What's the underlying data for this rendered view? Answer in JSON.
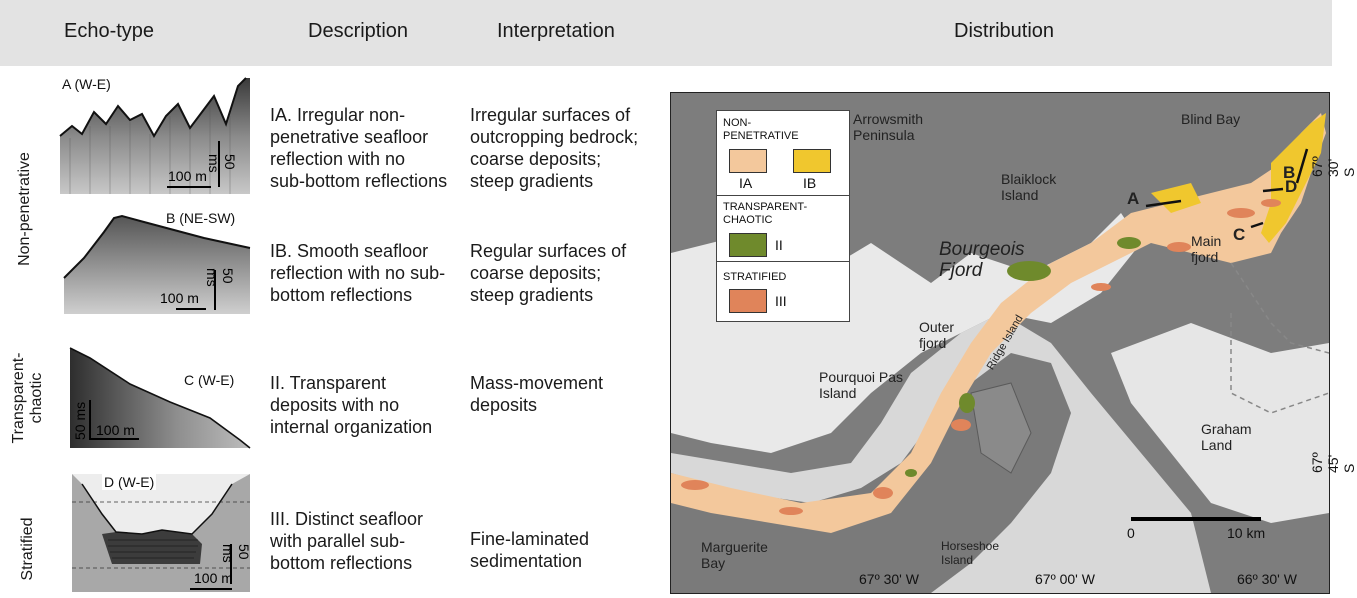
{
  "header": {
    "echo_type": "Echo-type",
    "description": "Description",
    "interpretation": "Interpretation",
    "distribution": "Distribution"
  },
  "row_labels": {
    "non_penetrative": "Non-penetrative",
    "transparent_line1": "Transparent-",
    "transparent_line2": "chaotic",
    "stratified": "Stratified"
  },
  "profiles": {
    "a": {
      "tag": "A (W-E)",
      "horizontal_scale": "100 m",
      "vertical_scale": "50 ms"
    },
    "b": {
      "tag": "B (NE-SW)",
      "horizontal_scale": "100 m",
      "vertical_scale": "50 ms"
    },
    "c": {
      "tag": "C (W-E)",
      "horizontal_scale": "100 m",
      "vertical_scale": "50 ms"
    },
    "d": {
      "tag": "D (W-E)",
      "horizontal_scale": "100 m",
      "vertical_scale": "50 ms"
    }
  },
  "rows": [
    {
      "description": "IA. Irregular non-\npenetrative seafloor\nreflection with no\nsub-bottom reflections",
      "interpretation": "Irregular surfaces of\noutcropping bedrock;\ncoarse deposits;\nsteep gradients"
    },
    {
      "description": "IB. Smooth seafloor\nreflection with no sub-\nbottom reflections",
      "interpretation": "Regular surfaces of\ncoarse deposits;\nsteep gradients"
    },
    {
      "description": "II. Transparent\ndeposits with no\ninternal organization",
      "interpretation": "Mass-movement\ndeposits"
    },
    {
      "description": "III. Distinct seafloor\nwith parallel sub-\nbottom reflections",
      "interpretation": "Fine-laminated\nsedimentation"
    }
  ],
  "legend": {
    "non_penetrative": "NON-\nPENETRATIVE",
    "ia": "IA",
    "ib": "IB",
    "transparent": "TRANSPARENT-\nCHAOTIC",
    "ii": "II",
    "stratified": "STRATIFIED",
    "iii": "III"
  },
  "map_labels": {
    "arrowsmith": "Arrowsmith\nPeninsula",
    "blind_bay": "Blind Bay",
    "blaiklock": "Blaiklock\nIsland",
    "bourgeois": "Bourgeois\nFjord",
    "main_fjord": "Main\nfjord",
    "outer_fjord": "Outer\nfjord",
    "ridge_island": "Ridge Island",
    "pourquoi_pas": "Pourquoi Pas\nIsland",
    "graham_land": "Graham\nLand",
    "marguerite": "Marguerite\nBay",
    "horseshoe": "Horseshoe\nIsland",
    "profile_a": "A",
    "profile_b": "B",
    "profile_c": "C",
    "profile_d": "D"
  },
  "map_coords": {
    "lon1": "67º 30' W",
    "lon2": "67º 00' W",
    "lon3": "66º 30' W",
    "lat1": "67º 30' S",
    "lat2": "67º 45' S"
  },
  "scale_bar": {
    "start": "0",
    "end": "10 km"
  },
  "colors": {
    "ia": "#f3c89c",
    "ib": "#f0c72e",
    "ii": "#6f8a2c",
    "iii": "#e0845a",
    "land": "#7c7c7c",
    "ice": "#ebebeb",
    "sea": "#d6d6d6"
  }
}
